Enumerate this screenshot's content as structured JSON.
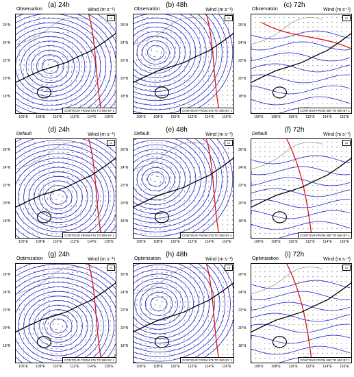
{
  "panels": [
    {
      "title": "(a) 24h",
      "label": "Observation",
      "note": "CONTOUR FROM 575 TO 590 BY 1",
      "center": [
        0.34,
        0.52
      ],
      "red": "east",
      "mode": "typhoon"
    },
    {
      "title": "(b) 48h",
      "label": "Observation",
      "note": "CONTOUR FROM 575 TO 590 BY 1",
      "center": [
        0.22,
        0.38
      ],
      "red": "east",
      "mode": "typhoon"
    },
    {
      "title": "(c) 72h",
      "label": "Observation",
      "note": "CONTOUR FROM 580 TO 590 BY 1",
      "center": [
        0.3,
        0.6
      ],
      "red": "north",
      "mode": "weak"
    },
    {
      "title": "(d) 24h",
      "label": "Default",
      "note": "CONTOUR FROM 575 TO 590 BY 1",
      "center": [
        0.42,
        0.58
      ],
      "red": "east",
      "mode": "typhoon"
    },
    {
      "title": "(e) 48h",
      "label": "Default",
      "note": "CONTOUR FROM 575 TO 590 BY 1",
      "center": [
        0.22,
        0.4
      ],
      "red": "east",
      "mode": "typhoon"
    },
    {
      "title": "(f) 72h",
      "label": "Default",
      "note": "CONTOUR FROM 580 TO 590 BY 1",
      "center": [
        0.35,
        0.6
      ],
      "red": "mid",
      "mode": "weak"
    },
    {
      "title": "(g) 24h",
      "label": "Optimization",
      "note": "CONTOUR FROM 575 TO 590 BY 1",
      "center": [
        0.42,
        0.62
      ],
      "red": "east",
      "mode": "typhoon"
    },
    {
      "title": "(h) 48h",
      "label": "Optimization",
      "note": "CONTOUR FROM 575 TO 590 BY 1",
      "center": [
        0.25,
        0.4
      ],
      "red": "east",
      "mode": "typhoon"
    },
    {
      "title": "(i) 72h",
      "label": "Optimization",
      "note": "CONTOUR FROM 580 TO 590 BY 1",
      "center": [
        0.35,
        0.62
      ],
      "red": "mid",
      "mode": "weak"
    }
  ],
  "wind_label": "Wind (m s⁻¹)",
  "ref_vector": "10",
  "y_ticks": [
    "26°N",
    "24°N",
    "22°N",
    "20°N",
    "18°N"
  ],
  "x_ticks": [
    "106°E",
    "108°E",
    "110°E",
    "112°E",
    "114°E",
    "116°E"
  ],
  "colors": {
    "contour": "#1f1fd0",
    "ridge": "#e01010",
    "coast": "#000000",
    "border": "#808080",
    "arrow": "#333333"
  }
}
